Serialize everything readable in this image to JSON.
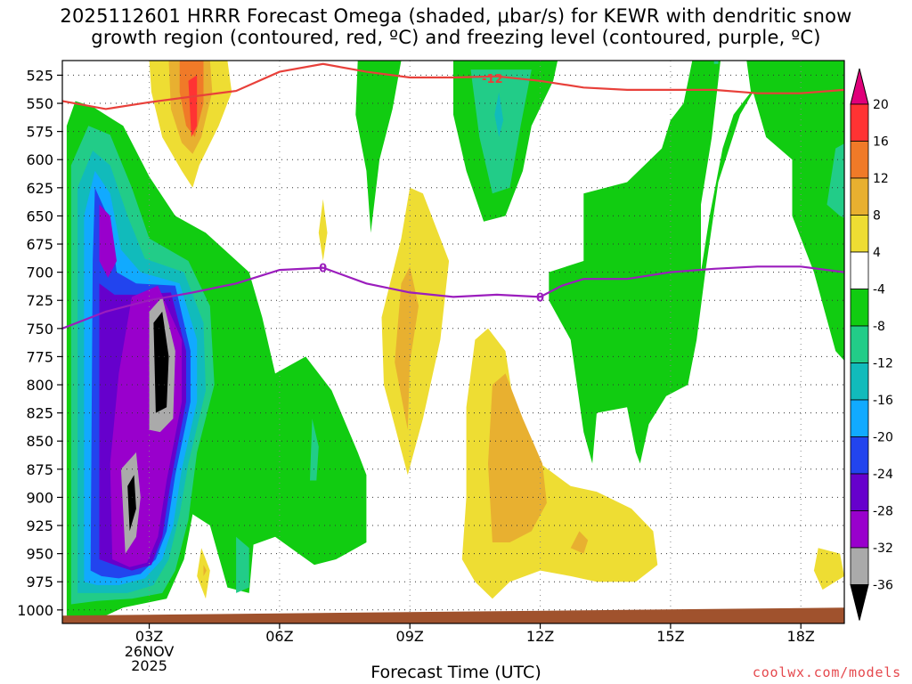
{
  "chart_data": {
    "type": "heatmap",
    "title_line1": "2025112601 HRRR Forecast Omega (shaded, μbar/s) for KEWR with dendritic snow",
    "title_line2": "growth region (contoured, red, ºC) and freezing level (contoured, purple, ºC)",
    "xlabel": "Forecast Time (UTC)",
    "ylabel": "",
    "credit": "coolwx.com/models",
    "x_tick_labels": [
      "03Z",
      "06Z",
      "09Z",
      "12Z",
      "15Z",
      "18Z"
    ],
    "x_tick_hours": [
      3,
      6,
      9,
      12,
      15,
      18
    ],
    "date_lines": [
      "26NOV",
      "2025"
    ],
    "xlim": [
      1,
      19
    ],
    "y_ticks": [
      525,
      550,
      575,
      600,
      625,
      650,
      675,
      700,
      725,
      750,
      775,
      800,
      825,
      850,
      875,
      900,
      925,
      950,
      975,
      1000
    ],
    "ylim": [
      1012,
      512
    ],
    "colorbar": {
      "ticks": [
        20,
        16,
        12,
        8,
        4,
        -4,
        -8,
        -12,
        -16,
        -20,
        -24,
        -28,
        -32,
        -36
      ],
      "colors": [
        "#e0007a",
        "#ff3333",
        "#f07a28",
        "#e8b030",
        "#eedd33",
        "#ffffff",
        "#11cc11",
        "#22cc88",
        "#11bbbb",
        "#11aaff",
        "#2244ee",
        "#6600cc",
        "#9900cc",
        "#aaaaaa",
        "#000000"
      ]
    },
    "dgz_line": {
      "label": "-12",
      "x": [
        1.0,
        2.0,
        3.0,
        4.0,
        5.0,
        6.0,
        7.0,
        8.0,
        9.0,
        10.0,
        11.0,
        12.0,
        13.0,
        14.0,
        15.0,
        16.0,
        17.0,
        18.0,
        19.0
      ],
      "y": [
        548,
        555,
        549,
        544,
        539,
        522,
        515,
        522,
        527,
        527,
        526,
        530,
        536,
        538,
        538,
        538,
        541,
        541,
        538
      ]
    },
    "freezing_line": {
      "label": "0",
      "x": [
        1.0,
        2.0,
        3.0,
        4.0,
        5.0,
        6.0,
        7.0,
        8.0,
        9.0,
        10.0,
        11.0,
        12.0,
        12.5,
        13.0,
        14.0,
        15.0,
        16.0,
        17.0,
        18.0,
        19.0
      ],
      "y": [
        750,
        735,
        725,
        718,
        710,
        698,
        696,
        710,
        718,
        722,
        720,
        722,
        712,
        706,
        706,
        700,
        697,
        695,
        695,
        700
      ]
    }
  }
}
